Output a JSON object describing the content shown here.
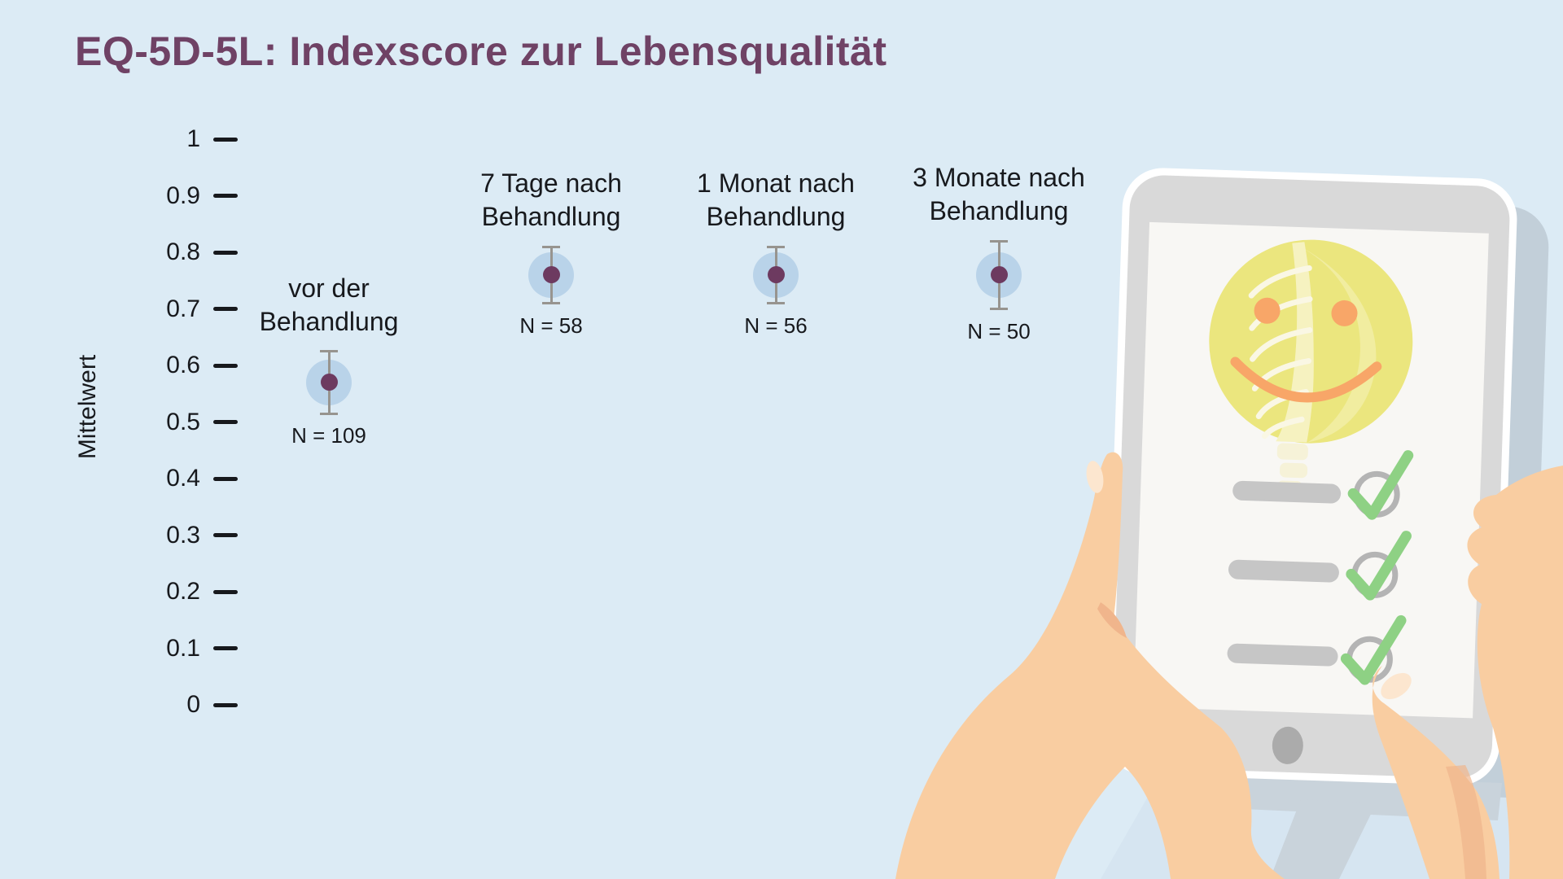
{
  "page": {
    "background_color": "#dcebf5",
    "title": "EQ-5D-5L: Indexscore zur Lebensqualität",
    "title_color": "#6f4265"
  },
  "chart_data": {
    "type": "scatter",
    "title": "EQ-5D-5L: Indexscore zur Lebensqualität",
    "ylabel": "Mittelwert",
    "ylim": [
      0,
      1
    ],
    "yticks": [
      1,
      0.9,
      0.8,
      0.7,
      0.6,
      0.5,
      0.4,
      0.3,
      0.2,
      0.1,
      0
    ],
    "ytick_labels": [
      "1",
      "0.9",
      "0.8",
      "0.7",
      "0.6",
      "0.5",
      "0.4",
      "0.3",
      "0.2",
      "0.1",
      "0"
    ],
    "grid": false,
    "legend": "none",
    "categories": [
      "vor der\nBehandlung",
      "7 Tage nach\nBehandlung",
      "1 Monat nach\nBehandlung",
      "3 Monate nach\nBehandlung"
    ],
    "series": [
      {
        "name": "Mittelwert EQ-5D-5L Indexscore",
        "values": [
          0.57,
          0.76,
          0.76,
          0.76
        ],
        "errors": [
          0.055,
          0.05,
          0.05,
          0.06
        ],
        "n_labels": [
          "N = 109",
          "N = 58",
          "N = 56",
          "N = 50"
        ]
      }
    ],
    "colors": {
      "point": "#6d3a60",
      "point_halo": "#b9d3e9",
      "error_bar": "#97948f",
      "axis_text": "#17191d"
    }
  },
  "illustration": {
    "tablet_icon": "tablet-with-checklist",
    "smiley_icon": "smiley-face-with-spine-xray",
    "checkmark_icon": "green-checkmark",
    "checkmark_count": 3,
    "checklist_bar_count": 3,
    "hands": "two-hands-holding-tablet",
    "colors": {
      "skin": "#f9cda1",
      "skin_shade": "#f0b58c",
      "nail": "#fce6cf",
      "tablet_frame": "#ffffff",
      "tablet_bezel": "#d9d9d9",
      "screen": "#f8f7f4",
      "smiley_yellow": "#ebe67e",
      "smiley_orange": "#f8a668",
      "spine_cream": "#faf7e4",
      "bar_gray": "#c6c6c6",
      "ring_gray": "#b4b4b4",
      "check_green": "#8ed184",
      "home_button": "#ababab",
      "drop_shadow": "#c2cfd9",
      "floor_shadow": "#c9d3db",
      "floor_light": "#d6e5f1"
    }
  }
}
